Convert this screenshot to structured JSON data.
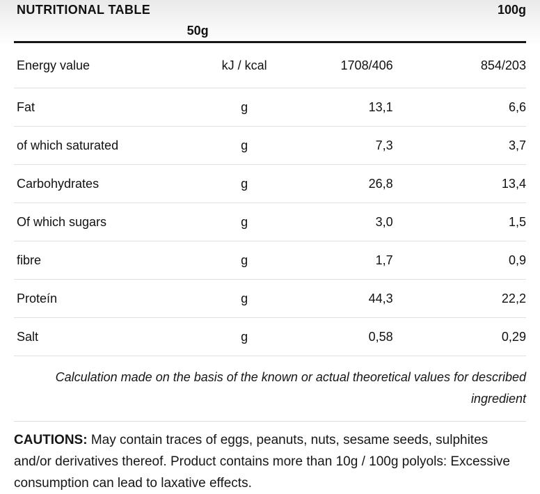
{
  "table": {
    "title": "NUTRITIONAL TABLE",
    "columns": {
      "per100_header": "100g",
      "per50_header": "50g"
    },
    "rows": [
      {
        "label": "Energy value",
        "unit": "kJ / kcal",
        "per100": "1708/406",
        "per50": "854/203"
      },
      {
        "label": "Fat",
        "unit": "g",
        "per100": "13,1",
        "per50": "6,6"
      },
      {
        "label": "of which saturated",
        "unit": "g",
        "per100": "7,3",
        "per50": "3,7"
      },
      {
        "label": "Carbohydrates",
        "unit": "g",
        "per100": "26,8",
        "per50": "13,4"
      },
      {
        "label": "Of which sugars",
        "unit": "g",
        "per100": "3,0",
        "per50": "1,5"
      },
      {
        "label": "fibre",
        "unit": "g",
        "per100": "1,7",
        "per50": "0,9"
      },
      {
        "label": "Proteín",
        "unit": "g",
        "per100": "44,3",
        "per50": "22,2"
      },
      {
        "label": "Salt",
        "unit": "g",
        "per100": "0,58",
        "per50": "0,29"
      }
    ],
    "footnote": "Calculation made on the basis of the known or actual theoretical values for described ingredient"
  },
  "cautions": {
    "label": "CAUTIONS:",
    "text": " May contain traces of eggs, peanuts, nuts, sesame seeds, sulphites and/or derivatives thereof. Product contains more than 10g / 100g polyols: Excessive consumption can lead to laxative effects."
  },
  "colors": {
    "header_gradient_top": "#e9e9e9",
    "header_rule": "#151515",
    "row_separator": "#e0e0e0",
    "text": "#111111",
    "background": "#ffffff"
  }
}
